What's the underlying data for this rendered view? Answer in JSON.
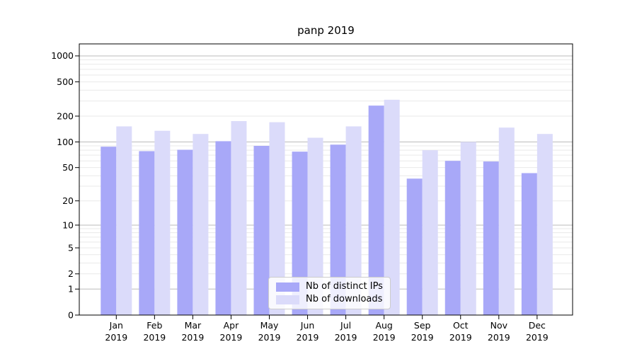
{
  "title": "panp 2019",
  "legend": {
    "items": [
      {
        "label": "Nb of distinct IPs",
        "color": "#a8a8f8"
      },
      {
        "label": "Nb of downloads",
        "color": "#dbdbfa"
      }
    ],
    "position": "lower center"
  },
  "chart_data": {
    "type": "bar",
    "title": "panp 2019",
    "scale": "log1p",
    "grid": true,
    "categories": [
      {
        "month": "Jan",
        "year": "2019"
      },
      {
        "month": "Feb",
        "year": "2019"
      },
      {
        "month": "Mar",
        "year": "2019"
      },
      {
        "month": "Apr",
        "year": "2019"
      },
      {
        "month": "May",
        "year": "2019"
      },
      {
        "month": "Jun",
        "year": "2019"
      },
      {
        "month": "Jul",
        "year": "2019"
      },
      {
        "month": "Aug",
        "year": "2019"
      },
      {
        "month": "Sep",
        "year": "2019"
      },
      {
        "month": "Oct",
        "year": "2019"
      },
      {
        "month": "Nov",
        "year": "2019"
      },
      {
        "month": "Dec",
        "year": "2019"
      }
    ],
    "series": [
      {
        "name": "Nb of distinct IPs",
        "color": "#a8a8f8",
        "values": [
          88,
          78,
          81,
          102,
          90,
          77,
          93,
          265,
          37,
          60,
          59,
          43
        ]
      },
      {
        "name": "Nb of downloads",
        "color": "#dbdbfa",
        "values": [
          152,
          135,
          124,
          175,
          170,
          112,
          152,
          310,
          80,
          100,
          147,
          124
        ]
      }
    ],
    "yticks": [
      0,
      1,
      2,
      5,
      10,
      20,
      50,
      100,
      200,
      500,
      1000
    ],
    "ylim": [
      0,
      1360
    ],
    "xlabel": "",
    "ylabel": ""
  },
  "colors": {
    "background": "#ffffff",
    "bar_distinct_ips": "#a8a8f8",
    "bar_downloads": "#dbdbfa",
    "grid_major": "#bbbbbb",
    "grid_minor": "#e9e9e9",
    "spine": "#000000",
    "text": "#000000"
  }
}
